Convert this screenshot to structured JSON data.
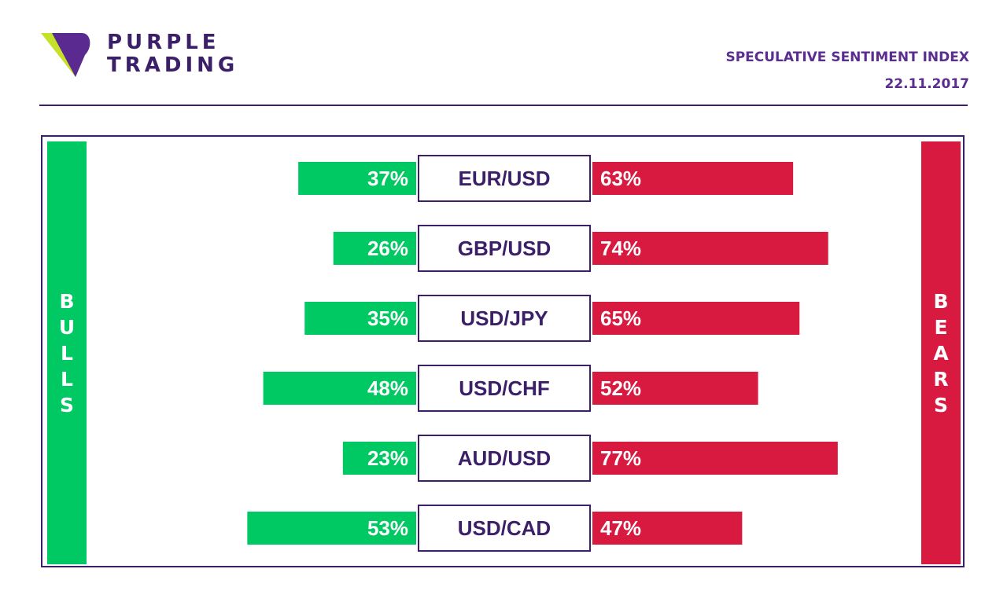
{
  "brand": {
    "line1": "PURPLE",
    "line2": "TRADING",
    "colors": {
      "purple": "#5b2a91",
      "lime": "#c6e12a",
      "dark": "#3b1f68"
    }
  },
  "header": {
    "title": "SPECULATIVE SENTIMENT INDEX",
    "date": "22.11.2017"
  },
  "labels": {
    "bulls": "BULLS",
    "bears": "BEARS"
  },
  "colors": {
    "bulls": "#00c862",
    "bears": "#d91a40",
    "label_border": "#3b1f68",
    "text": "#3b1f68"
  },
  "chart_data": {
    "type": "bar",
    "orientation": "horizontal-diverging",
    "title": "SPECULATIVE SENTIMENT INDEX",
    "categories": [
      "EUR/USD",
      "GBP/USD",
      "USD/JPY",
      "USD/CHF",
      "AUD/USD",
      "USD/CAD"
    ],
    "series": [
      {
        "name": "BULLS",
        "values": [
          37,
          26,
          35,
          48,
          23,
          53
        ],
        "labels": [
          "37%",
          "26%",
          "35%",
          "48%",
          "23%",
          "53%"
        ],
        "color": "#00c862"
      },
      {
        "name": "BEARS",
        "values": [
          63,
          74,
          65,
          52,
          77,
          47
        ],
        "labels": [
          "63%",
          "74%",
          "65%",
          "52%",
          "77%",
          "47%"
        ],
        "color": "#d91a40"
      }
    ],
    "unit": "%",
    "legend": "side-bars"
  }
}
